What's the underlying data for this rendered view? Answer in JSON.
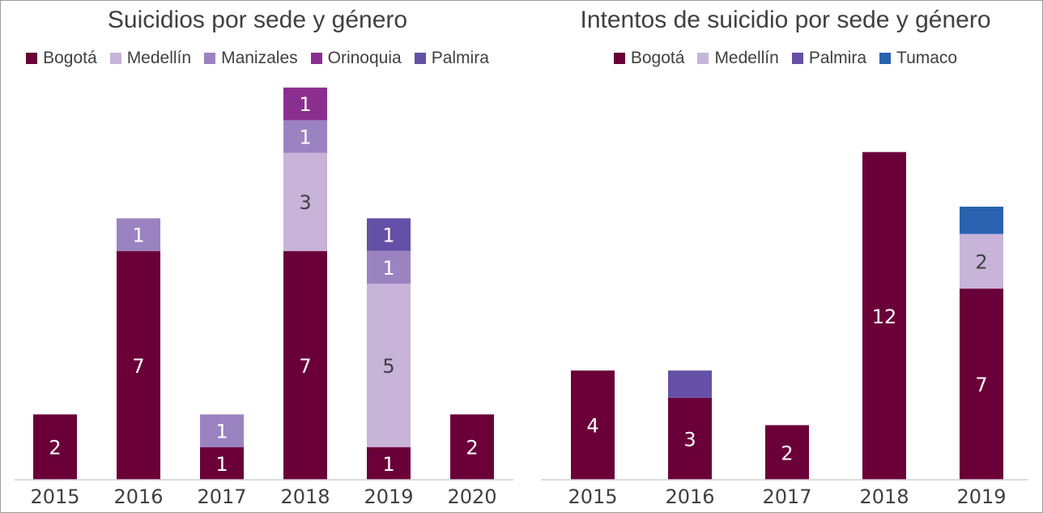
{
  "chart_data": [
    {
      "type": "bar",
      "stacked": true,
      "title": "Suicidios por sede y género",
      "legend_position": "top",
      "categories": [
        "2015",
        "2016",
        "2017",
        "2018",
        "2019",
        "2020"
      ],
      "series": [
        {
          "name": "Bogotá",
          "color": "#6b0039",
          "values": [
            2,
            7,
            1,
            7,
            1,
            2
          ]
        },
        {
          "name": "Medellín",
          "color": "#c8b3d9",
          "values": [
            0,
            0,
            0,
            3,
            5,
            0
          ]
        },
        {
          "name": "Manizales",
          "color": "#9b83c2",
          "values": [
            0,
            1,
            1,
            1,
            1,
            0
          ]
        },
        {
          "name": "Orinoquia",
          "color": "#8b2f8f",
          "values": [
            0,
            0,
            0,
            1,
            0,
            0
          ]
        },
        {
          "name": "Palmira",
          "color": "#6450a6",
          "values": [
            0,
            0,
            0,
            0,
            1,
            0
          ]
        }
      ],
      "ylim": [
        0,
        12.2
      ],
      "grid": false
    },
    {
      "type": "bar",
      "stacked": true,
      "title": "Intentos de suicidio por sede y género",
      "legend_position": "top",
      "categories": [
        "2015",
        "2016",
        "2017",
        "2018",
        "2019"
      ],
      "series": [
        {
          "name": "Bogotá",
          "color": "#6b0039",
          "values": [
            4,
            3,
            2,
            12,
            7
          ]
        },
        {
          "name": "Medellín",
          "color": "#c8b3d9",
          "values": [
            0,
            0,
            0,
            0,
            2
          ]
        },
        {
          "name": "Palmira",
          "color": "#6450a6",
          "values": [
            0,
            1,
            0,
            0,
            0
          ]
        },
        {
          "name": "Tumaco",
          "color": "#2a62b0",
          "values": [
            0,
            0,
            0,
            0,
            1
          ]
        }
      ],
      "ylim": [
        0,
        14.6
      ],
      "grid": false
    }
  ]
}
